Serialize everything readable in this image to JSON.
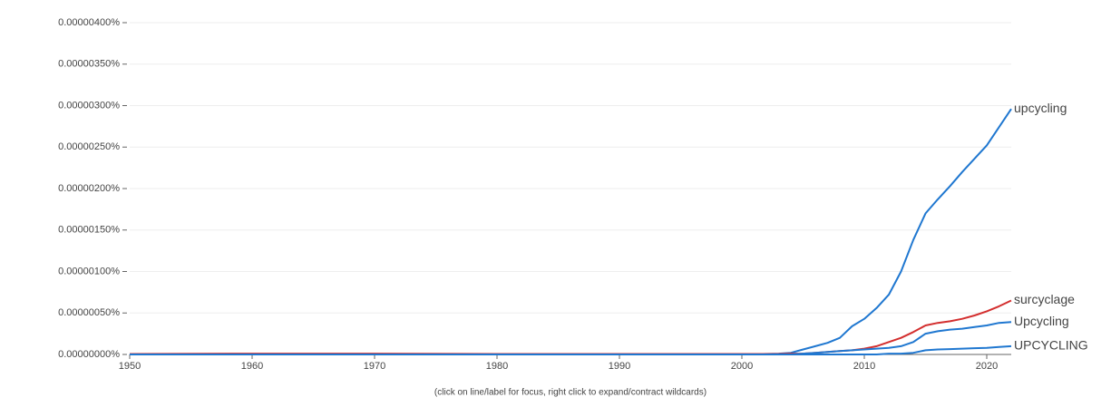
{
  "chart_data": {
    "type": "line",
    "note": "(click on line/label for focus, right click to expand/contract wildcards)",
    "x": [
      1950,
      1960,
      1970,
      1980,
      1990,
      2000,
      2003,
      2004,
      2005,
      2006,
      2007,
      2008,
      2009,
      2010,
      2011,
      2012,
      2013,
      2014,
      2015,
      2016,
      2017,
      2018,
      2019,
      2020,
      2021,
      2022
    ],
    "series": [
      {
        "name": "upcycling",
        "color": "#1f77d0",
        "values": [
          0,
          0,
          0,
          0,
          0,
          0,
          1e-08,
          2e-08,
          6e-08,
          1e-07,
          1.4e-07,
          2e-07,
          3.4e-07,
          4.3e-07,
          5.6e-07,
          7.2e-07,
          1e-06,
          1.38e-06,
          1.7e-06,
          1.87e-06,
          2.03e-06,
          2.2e-06,
          2.36e-06,
          2.52e-06,
          2.74e-06,
          2.96e-06
        ]
      },
      {
        "name": "surcyclage",
        "color": "#d32f2f",
        "values": [
          5e-09,
          1e-08,
          1e-08,
          5e-09,
          5e-09,
          5e-09,
          5e-09,
          1e-08,
          1e-08,
          2e-08,
          3e-08,
          4e-08,
          5e-08,
          7e-08,
          1e-07,
          1.5e-07,
          2e-07,
          2.7e-07,
          3.5e-07,
          3.8e-07,
          4e-07,
          4.3e-07,
          4.7e-07,
          5.2e-07,
          5.8e-07,
          6.5e-07
        ]
      },
      {
        "name": "Upcycling",
        "color": "#1f77d0",
        "values": [
          0,
          0,
          0,
          0,
          0,
          0,
          0,
          0,
          1e-08,
          2e-08,
          3e-08,
          4e-08,
          5e-08,
          6e-08,
          7e-08,
          8e-08,
          1e-07,
          1.5e-07,
          2.5e-07,
          2.8e-07,
          3e-07,
          3.1e-07,
          3.3e-07,
          3.5e-07,
          3.8e-07,
          3.9e-07
        ]
      },
      {
        "name": "UPCYCLING",
        "color": "#1f77d0",
        "values": [
          0,
          0,
          0,
          0,
          0,
          0,
          0,
          0,
          0,
          0,
          0,
          0,
          0,
          0,
          0,
          1e-08,
          1e-08,
          2e-08,
          5e-08,
          6e-08,
          6.5e-08,
          7e-08,
          7.5e-08,
          8e-08,
          9e-08,
          1e-07
        ]
      }
    ],
    "xlim": [
      1950,
      2022
    ],
    "xticks": [
      1950,
      1960,
      1970,
      1980,
      1990,
      2000,
      2010,
      2020
    ],
    "ylim": [
      0,
      4e-06
    ],
    "yticks": [
      {
        "value": 0,
        "label": "0.00000000%"
      },
      {
        "value": 5e-07,
        "label": "0.00000050%"
      },
      {
        "value": 1e-06,
        "label": "0.00000100%"
      },
      {
        "value": 1.5e-06,
        "label": "0.00000150%"
      },
      {
        "value": 2e-06,
        "label": "0.00000200%"
      },
      {
        "value": 2.5e-06,
        "label": "0.00000250%"
      },
      {
        "value": 3e-06,
        "label": "0.00000300%"
      },
      {
        "value": 3.5e-06,
        "label": "0.00000350%"
      },
      {
        "value": 4e-06,
        "label": "0.00000400%"
      }
    ],
    "grid": true
  }
}
